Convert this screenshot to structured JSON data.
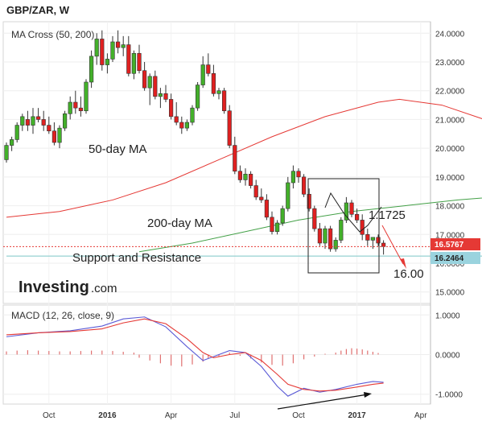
{
  "header": {
    "title": "GBP/ZAR, W"
  },
  "logo": {
    "main": "Investing",
    "suffix": ".com"
  },
  "chart_data": [
    {
      "type": "candlestick",
      "indicator_label": "MA Cross (50, 200)",
      "ylim": [
        14.6,
        24.4
      ],
      "y_ticks": [
        "24.0000",
        "23.0000",
        "22.0000",
        "21.0000",
        "20.0000",
        "19.0000",
        "18.0000",
        "17.0000",
        "16.0000",
        "15.0000"
      ],
      "x_ticks": [
        "Oct",
        "2016",
        "Apr",
        "Jul",
        "Oct",
        "2017",
        "Apr"
      ],
      "price_tags": [
        {
          "label": "16.5767",
          "value": 16.5767,
          "color": "#e53935"
        },
        {
          "label": "16.2464",
          "value": 16.2464,
          "color": "#9ad3de"
        }
      ],
      "annotations": [
        {
          "text": "50-day MA"
        },
        {
          "text": "200-day MA"
        },
        {
          "text": "Support and Resistance"
        },
        {
          "text": "1.1725"
        },
        {
          "text": "16.00"
        }
      ],
      "series": [
        {
          "name": "50-day MA",
          "color": "#e53935",
          "values": [
            [
              0,
              17.6
            ],
            [
              10,
              17.8
            ],
            [
              20,
              18.2
            ],
            [
              30,
              18.8
            ],
            [
              40,
              19.6
            ],
            [
              50,
              20.4
            ],
            [
              60,
              21.1
            ],
            [
              70,
              21.6
            ],
            [
              74,
              21.7
            ],
            [
              82,
              21.5
            ],
            [
              90,
              21.0
            ],
            [
              96,
              20.4
            ],
            [
              100,
              19.6
            ]
          ]
        },
        {
          "name": "200-day MA",
          "color": "#43a047",
          "values": [
            [
              25,
              16.4
            ],
            [
              35,
              16.7
            ],
            [
              45,
              17.1
            ],
            [
              55,
              17.5
            ],
            [
              65,
              17.8
            ],
            [
              75,
              18.0
            ],
            [
              85,
              18.2
            ],
            [
              95,
              18.35
            ]
          ]
        },
        {
          "name": "Support and Resistance",
          "color": "#7ec8c8",
          "values": [
            [
              0,
              16.25
            ],
            [
              112,
              16.25
            ]
          ]
        }
      ],
      "ohlc": [
        [
          0,
          19.6,
          20.2,
          19.5,
          20.1
        ],
        [
          1,
          20.1,
          20.4,
          19.9,
          20.3
        ],
        [
          2,
          20.3,
          20.9,
          20.2,
          20.8
        ],
        [
          3,
          20.8,
          21.2,
          20.6,
          21.1
        ],
        [
          4,
          21.0,
          21.3,
          20.6,
          20.8
        ],
        [
          5,
          20.8,
          21.4,
          20.5,
          21.1
        ],
        [
          6,
          21.1,
          21.4,
          20.9,
          21.0
        ],
        [
          7,
          21.0,
          21.3,
          20.6,
          20.8
        ],
        [
          8,
          20.8,
          21.1,
          20.5,
          20.6
        ],
        [
          9,
          20.6,
          20.9,
          20.1,
          20.2
        ],
        [
          10,
          20.2,
          20.8,
          20.0,
          20.7
        ],
        [
          11,
          20.7,
          21.3,
          20.6,
          21.2
        ],
        [
          12,
          21.2,
          21.8,
          21.0,
          21.6
        ],
        [
          13,
          21.6,
          22.0,
          21.2,
          21.4
        ],
        [
          14,
          21.4,
          21.8,
          21.1,
          21.3
        ],
        [
          15,
          21.3,
          22.4,
          21.2,
          22.3
        ],
        [
          16,
          22.3,
          23.4,
          22.1,
          23.2
        ],
        [
          17,
          23.2,
          24.0,
          22.9,
          23.8
        ],
        [
          18,
          23.8,
          24.1,
          22.7,
          22.9
        ],
        [
          19,
          22.9,
          23.3,
          22.6,
          23.1
        ],
        [
          20,
          23.1,
          23.9,
          23.0,
          23.7
        ],
        [
          21,
          23.7,
          24.1,
          23.3,
          23.5
        ],
        [
          22,
          23.5,
          23.9,
          23.2,
          23.6
        ],
        [
          23,
          23.6,
          23.9,
          22.5,
          22.6
        ],
        [
          24,
          22.6,
          23.4,
          22.4,
          23.3
        ],
        [
          25,
          23.3,
          23.6,
          22.6,
          22.7
        ],
        [
          26,
          22.7,
          23.0,
          22.0,
          22.1
        ],
        [
          27,
          22.1,
          22.6,
          21.5,
          22.5
        ],
        [
          28,
          22.5,
          22.7,
          21.7,
          21.8
        ],
        [
          29,
          21.8,
          22.1,
          21.4,
          21.9
        ],
        [
          30,
          21.9,
          22.2,
          21.6,
          21.7
        ],
        [
          31,
          21.7,
          21.9,
          21.0,
          21.1
        ],
        [
          32,
          21.1,
          21.6,
          20.8,
          20.9
        ],
        [
          33,
          20.9,
          21.1,
          20.5,
          20.7
        ],
        [
          34,
          20.7,
          21.0,
          20.6,
          20.9
        ],
        [
          35,
          20.9,
          21.5,
          20.8,
          21.4
        ],
        [
          36,
          21.4,
          22.3,
          21.3,
          22.2
        ],
        [
          37,
          22.2,
          23.2,
          22.1,
          22.9
        ],
        [
          38,
          22.9,
          23.3,
          22.5,
          22.6
        ],
        [
          39,
          22.6,
          22.9,
          21.8,
          21.9
        ],
        [
          40,
          21.9,
          22.1,
          21.7,
          22.0
        ],
        [
          41,
          22.0,
          22.1,
          21.2,
          21.3
        ],
        [
          42,
          21.3,
          21.5,
          20.0,
          20.1
        ],
        [
          43,
          20.1,
          20.4,
          19.1,
          19.2
        ],
        [
          44,
          19.2,
          19.4,
          18.8,
          18.9
        ],
        [
          45,
          18.9,
          19.3,
          18.7,
          19.1
        ],
        [
          46,
          19.1,
          19.2,
          18.6,
          18.7
        ],
        [
          47,
          18.7,
          18.9,
          18.2,
          18.3
        ],
        [
          48,
          18.3,
          18.6,
          18.1,
          18.2
        ],
        [
          49,
          18.2,
          18.4,
          17.5,
          17.6
        ],
        [
          50,
          17.6,
          17.8,
          17.0,
          17.1
        ],
        [
          51,
          17.1,
          17.5,
          17.0,
          17.4
        ],
        [
          52,
          17.4,
          18.0,
          17.3,
          17.9
        ],
        [
          53,
          17.9,
          19.0,
          17.8,
          18.8
        ],
        [
          54,
          18.8,
          19.4,
          18.6,
          19.2
        ],
        [
          55,
          19.2,
          19.3,
          18.8,
          19.0
        ],
        [
          56,
          19.0,
          19.1,
          18.3,
          18.4
        ],
        [
          57,
          18.4,
          18.6,
          17.8,
          17.9
        ],
        [
          58,
          17.9,
          18.0,
          17.1,
          17.2
        ],
        [
          59,
          17.2,
          17.4,
          16.6,
          16.7
        ],
        [
          60,
          16.7,
          17.3,
          16.5,
          17.2
        ],
        [
          61,
          17.2,
          17.3,
          16.4,
          16.5
        ],
        [
          62,
          16.5,
          16.9,
          16.4,
          16.8
        ],
        [
          63,
          16.8,
          17.6,
          16.7,
          17.5
        ],
        [
          64,
          17.5,
          18.3,
          17.4,
          18.1
        ],
        [
          65,
          18.1,
          18.2,
          17.6,
          17.7
        ],
        [
          66,
          17.7,
          17.9,
          17.4,
          17.5
        ],
        [
          67,
          17.5,
          17.7,
          16.8,
          17.0
        ],
        [
          68,
          17.0,
          17.2,
          16.6,
          16.8
        ],
        [
          69,
          16.8,
          16.9,
          16.5,
          16.9
        ],
        [
          70,
          16.9,
          17.0,
          16.6,
          16.7
        ],
        [
          71,
          16.7,
          16.8,
          16.3,
          16.58
        ]
      ]
    },
    {
      "type": "line",
      "indicator_label": "MACD (12, 26, close, 9)",
      "ylim": [
        -1.25,
        1.25
      ],
      "y_ticks": [
        "1.0000",
        "0.0000",
        "-1.0000"
      ],
      "series": [
        {
          "name": "MACD",
          "color": "#5b5bd6",
          "values": [
            [
              0,
              0.45
            ],
            [
              6,
              0.55
            ],
            [
              12,
              0.6
            ],
            [
              18,
              0.72
            ],
            [
              22,
              0.9
            ],
            [
              26,
              0.95
            ],
            [
              30,
              0.7
            ],
            [
              34,
              0.2
            ],
            [
              37,
              -0.15
            ],
            [
              39,
              -0.05
            ],
            [
              42,
              0.1
            ],
            [
              45,
              0.05
            ],
            [
              48,
              -0.3
            ],
            [
              51,
              -0.8
            ],
            [
              53,
              -1.05
            ],
            [
              56,
              -0.85
            ],
            [
              59,
              -0.95
            ],
            [
              62,
              -0.88
            ],
            [
              66,
              -0.75
            ],
            [
              69,
              -0.68
            ],
            [
              71,
              -0.7
            ]
          ]
        },
        {
          "name": "Signal",
          "color": "#e53935",
          "values": [
            [
              0,
              0.5
            ],
            [
              6,
              0.55
            ],
            [
              12,
              0.58
            ],
            [
              18,
              0.65
            ],
            [
              22,
              0.8
            ],
            [
              26,
              0.9
            ],
            [
              30,
              0.78
            ],
            [
              34,
              0.4
            ],
            [
              37,
              0.05
            ],
            [
              39,
              -0.08
            ],
            [
              42,
              0.0
            ],
            [
              45,
              0.05
            ],
            [
              48,
              -0.15
            ],
            [
              51,
              -0.5
            ],
            [
              53,
              -0.75
            ],
            [
              56,
              -0.88
            ],
            [
              59,
              -0.92
            ],
            [
              62,
              -0.9
            ],
            [
              66,
              -0.82
            ],
            [
              69,
              -0.75
            ],
            [
              71,
              -0.72
            ]
          ]
        }
      ],
      "histogram": [
        [
          0,
          0.08
        ],
        [
          2,
          0.1
        ],
        [
          4,
          0.11
        ],
        [
          6,
          0.1
        ],
        [
          8,
          0.09
        ],
        [
          10,
          0.08
        ],
        [
          12,
          0.08
        ],
        [
          14,
          0.09
        ],
        [
          16,
          0.1
        ],
        [
          18,
          0.1
        ],
        [
          20,
          0.09
        ],
        [
          22,
          0.07
        ],
        [
          24,
          0.05
        ],
        [
          25,
          -0.08
        ],
        [
          27,
          -0.15
        ],
        [
          29,
          -0.22
        ],
        [
          31,
          -0.28
        ],
        [
          33,
          -0.3
        ],
        [
          35,
          -0.25
        ],
        [
          37,
          -0.18
        ],
        [
          38,
          -0.1
        ],
        [
          40,
          -0.04
        ],
        [
          42,
          0.05
        ],
        [
          44,
          -0.03
        ],
        [
          46,
          -0.1
        ],
        [
          48,
          -0.2
        ],
        [
          50,
          -0.26
        ],
        [
          52,
          -0.28
        ],
        [
          54,
          -0.22
        ],
        [
          56,
          -0.12
        ],
        [
          58,
          -0.05
        ],
        [
          60,
          0.02
        ],
        [
          62,
          0.05
        ],
        [
          63,
          0.1
        ],
        [
          64,
          0.14
        ],
        [
          65,
          0.16
        ],
        [
          66,
          0.15
        ],
        [
          67,
          0.13
        ],
        [
          68,
          0.1
        ],
        [
          69,
          0.07
        ],
        [
          70,
          0.04
        ]
      ]
    }
  ]
}
